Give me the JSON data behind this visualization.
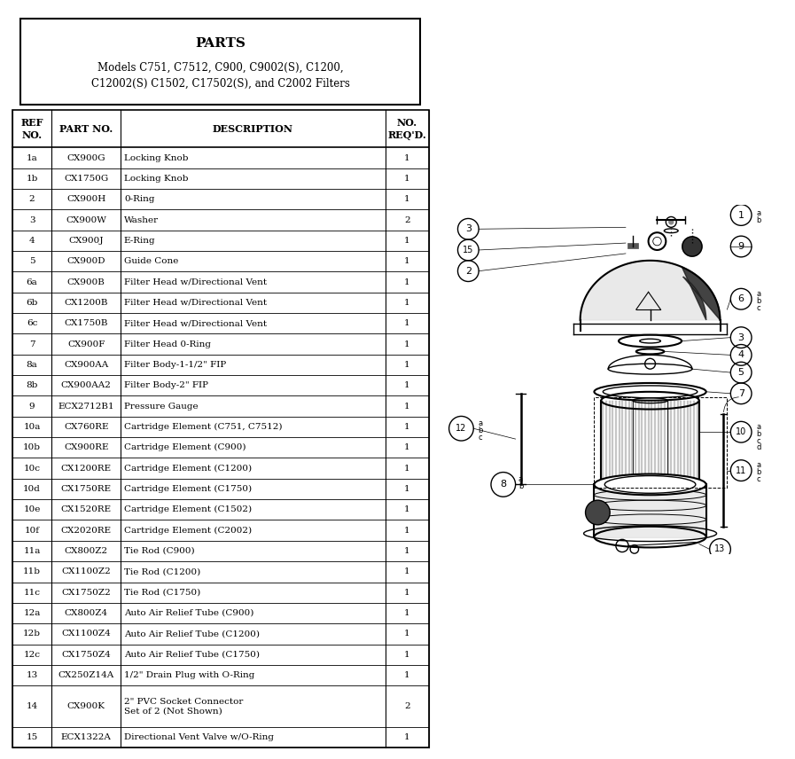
{
  "title": "PARTS",
  "subtitle": "Models C751, C7512, C900, C9002(S), C1200,\nC12002(S) C1502, C17502(S), and C2002 Filters",
  "headers": [
    "REF\nNO.",
    "PART NO.",
    "DESCRIPTION",
    "NO.\nREQ'D."
  ],
  "rows": [
    [
      "1a",
      "CX900G",
      "Locking Knob",
      "1"
    ],
    [
      "1b",
      "CX1750G",
      "Locking Knob",
      "1"
    ],
    [
      "2",
      "CX900H",
      "0-Ring",
      "1"
    ],
    [
      "3",
      "CX900W",
      "Washer",
      "2"
    ],
    [
      "4",
      "CX900J",
      "E-Ring",
      "1"
    ],
    [
      "5",
      "CX900D",
      "Guide Cone",
      "1"
    ],
    [
      "6a",
      "CX900B",
      "Filter Head w/Directional Vent",
      "1"
    ],
    [
      "6b",
      "CX1200B",
      "Filter Head w/Directional Vent",
      "1"
    ],
    [
      "6c",
      "CX1750B",
      "Filter Head w/Directional Vent",
      "1"
    ],
    [
      "7",
      "CX900F",
      "Filter Head 0-Ring",
      "1"
    ],
    [
      "8a",
      "CX900AA",
      "Filter Body-1-1/2\" FIP",
      "1"
    ],
    [
      "8b",
      "CX900AA2",
      "Filter Body-2\" FIP",
      "1"
    ],
    [
      "9",
      "ECX2712B1",
      "Pressure Gauge",
      "1"
    ],
    [
      "10a",
      "CX760RE",
      "Cartridge Element (C751, C7512)",
      "1"
    ],
    [
      "10b",
      "CX900RE",
      "Cartridge Element (C900)",
      "1"
    ],
    [
      "10c",
      "CX1200RE",
      "Cartridge Element (C1200)",
      "1"
    ],
    [
      "10d",
      "CX1750RE",
      "Cartridge Element (C1750)",
      "1"
    ],
    [
      "10e",
      "CX1520RE",
      "Cartridge Element (C1502)",
      "1"
    ],
    [
      "10f",
      "CX2020RE",
      "Cartridge Element (C2002)",
      "1"
    ],
    [
      "11a",
      "CX800Z2",
      "Tie Rod (C900)",
      "1"
    ],
    [
      "11b",
      "CX1100Z2",
      "Tie Rod (C1200)",
      "1"
    ],
    [
      "11c",
      "CX1750Z2",
      "Tie Rod (C1750)",
      "1"
    ],
    [
      "12a",
      "CX800Z4",
      "Auto Air Relief Tube (C900)",
      "1"
    ],
    [
      "12b",
      "CX1100Z4",
      "Auto Air Relief Tube (C1200)",
      "1"
    ],
    [
      "12c",
      "CX1750Z4",
      "Auto Air Relief Tube (C1750)",
      "1"
    ],
    [
      "13",
      "CX250Z14A",
      "1/2\" Drain Plug with O-Ring",
      "1"
    ],
    [
      "14",
      "CX900K",
      "2\" PVC Socket Connector\nSet of 2 (Not Shown)",
      "2"
    ],
    [
      "15",
      "ECX1322A",
      "Directional Vent Valve w/O-Ring",
      "1"
    ]
  ],
  "bg_color": "#ffffff"
}
